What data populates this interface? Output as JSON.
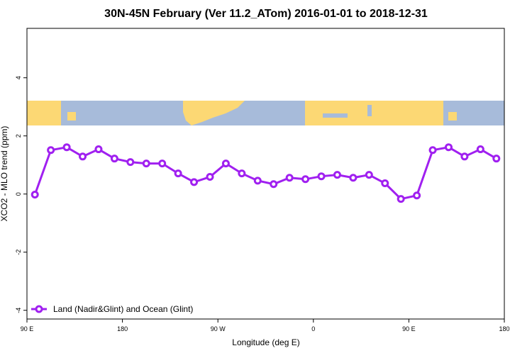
{
  "chart_data": {
    "type": "line",
    "title": "30N-45N February (Ver 11.2_ATom)   2016-01-01 to 2018-12-31",
    "x_label": "Longitude (deg E)",
    "y_label": "XCO2 - MLO trend (ppm)",
    "x": [
      97.5,
      112.5,
      127.5,
      142.5,
      157.5,
      172.5,
      187.5,
      202.5,
      217.5,
      232.5,
      247.5,
      262.5,
      277.5,
      292.5,
      307.5,
      322.5,
      337.5,
      352.5,
      367.5,
      382.5,
      397.5,
      412.5,
      427.5,
      442.5,
      457.5,
      472.5,
      487.5,
      502.5,
      517.5,
      532.5
    ],
    "series": [
      {
        "name": "Land (Nadir&Glint) and Ocean (Glint)",
        "color": "#a020f0",
        "values": [
          -0.02,
          1.51,
          1.61,
          1.29,
          1.54,
          1.22,
          1.1,
          1.05,
          1.05,
          0.71,
          0.41,
          0.59,
          1.05,
          0.71,
          0.46,
          0.34,
          0.56,
          0.51,
          0.61,
          0.66,
          0.56,
          0.66,
          0.37,
          -0.17,
          -0.05,
          1.51,
          1.61,
          1.29,
          1.54,
          1.22
        ]
      }
    ],
    "xlim": [
      90,
      540
    ],
    "xticks": [
      {
        "value": 90,
        "label": "90 E"
      },
      {
        "value": 180,
        "label": "180"
      },
      {
        "value": 270,
        "label": "90 W"
      },
      {
        "value": 360,
        "label": "0"
      },
      {
        "value": 450,
        "label": "90 E"
      },
      {
        "value": 540,
        "label": "180"
      }
    ],
    "ylim": [
      -4.3,
      5.7
    ],
    "yticks": [
      -4,
      -2,
      0,
      2,
      4
    ],
    "legend": "bottom-left"
  }
}
